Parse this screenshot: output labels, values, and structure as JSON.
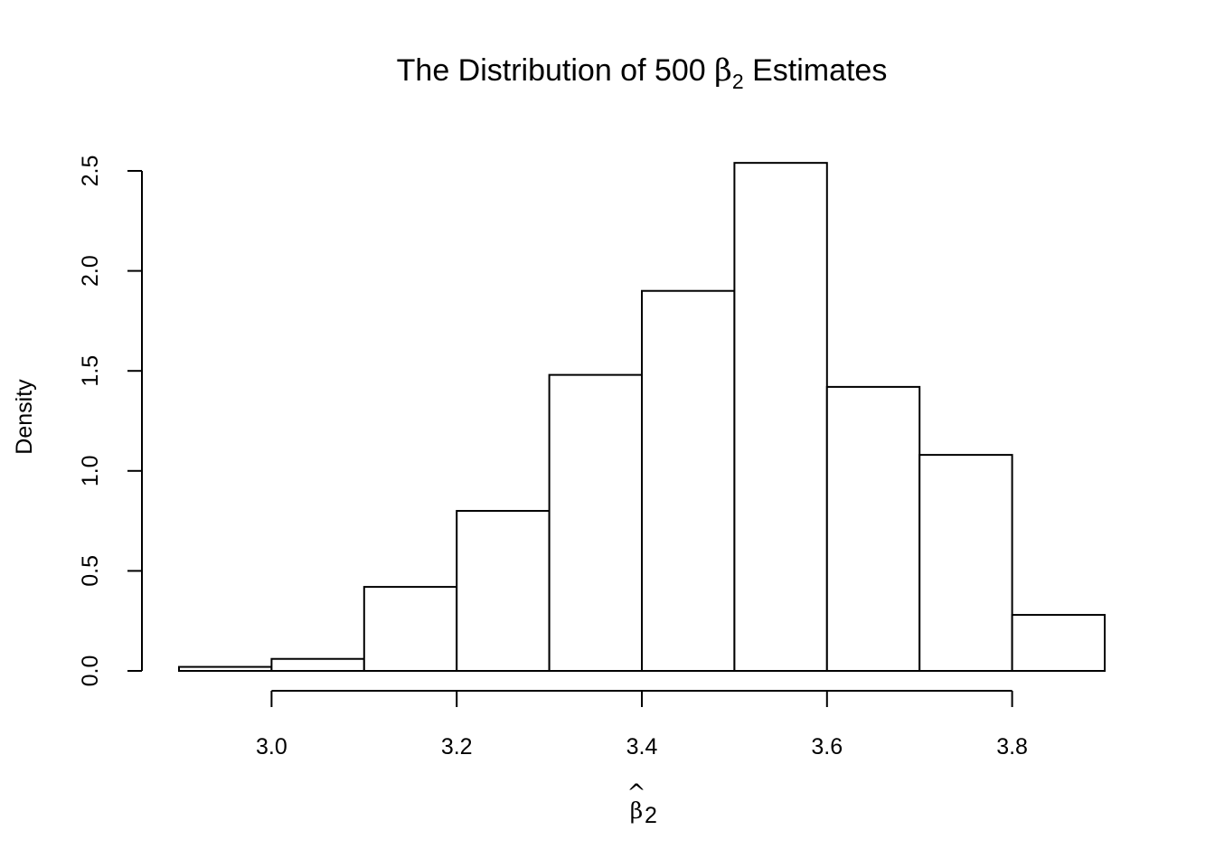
{
  "chart_data": {
    "type": "histogram",
    "title": {
      "prefix": "The Distribution of 500 ",
      "symbol": "β",
      "subscript": "2",
      "suffix": " Estimates"
    },
    "xlabel": {
      "hat": "^",
      "symbol": "β",
      "subscript": "2"
    },
    "ylabel": "Density",
    "bins": [
      {
        "x0": 2.9,
        "x1": 3.0,
        "density": 0.02
      },
      {
        "x0": 3.0,
        "x1": 3.1,
        "density": 0.06
      },
      {
        "x0": 3.1,
        "x1": 3.2,
        "density": 0.42
      },
      {
        "x0": 3.2,
        "x1": 3.3,
        "density": 0.8
      },
      {
        "x0": 3.3,
        "x1": 3.4,
        "density": 1.48
      },
      {
        "x0": 3.4,
        "x1": 3.5,
        "density": 1.9
      },
      {
        "x0": 3.5,
        "x1": 3.6,
        "density": 2.54
      },
      {
        "x0": 3.6,
        "x1": 3.7,
        "density": 1.42
      },
      {
        "x0": 3.7,
        "x1": 3.8,
        "density": 1.08
      },
      {
        "x0": 3.8,
        "x1": 3.9,
        "density": 0.28
      }
    ],
    "xticks": [
      3.0,
      3.2,
      3.4,
      3.6,
      3.8
    ],
    "xtick_labels": [
      "3.0",
      "3.2",
      "3.4",
      "3.6",
      "3.8"
    ],
    "yticks": [
      0.0,
      0.5,
      1.0,
      1.5,
      2.0,
      2.5
    ],
    "ytick_labels": [
      "0.0",
      "0.5",
      "1.0",
      "1.5",
      "2.0",
      "2.5"
    ],
    "xlim": [
      2.9,
      3.9
    ],
    "ylim": [
      0,
      2.5
    ],
    "grid": false,
    "legend": "none",
    "bar_fill": "#ffffff",
    "bar_stroke": "#000000"
  }
}
